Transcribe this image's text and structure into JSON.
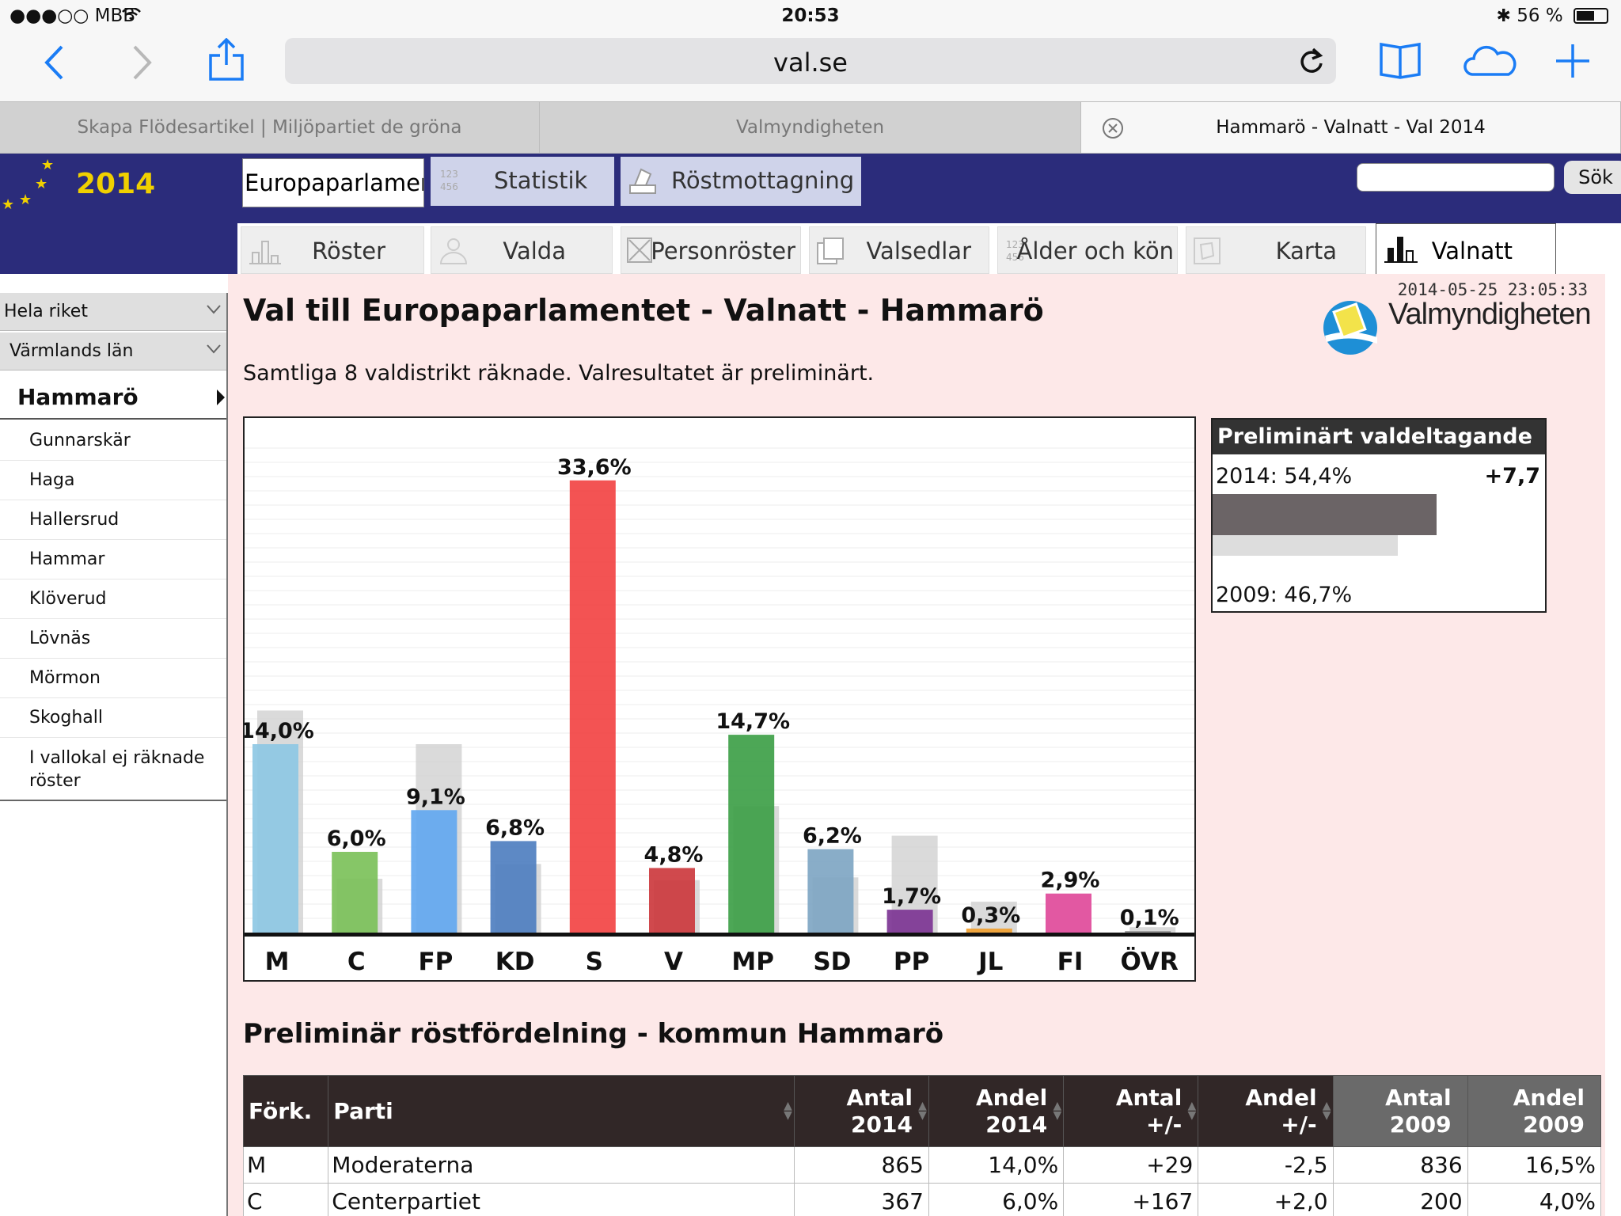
{
  "status": {
    "carrier": "●●●○○ MBB",
    "time": "20:53",
    "battery": "56 %"
  },
  "browser": {
    "url": "val.se",
    "tabs": [
      {
        "label": "Skapa Flödesartikel | Miljöpartiet de gröna"
      },
      {
        "label": "Valmyndigheten"
      },
      {
        "label": "Hammarö - Valnatt - Val 2014"
      }
    ]
  },
  "site": {
    "year": "2014",
    "main_tabs": [
      {
        "label": "Europaparlament"
      },
      {
        "label": "Statistik"
      },
      {
        "label": "Röstmottagning"
      }
    ],
    "search_button": "Sök",
    "sub_tabs": [
      {
        "label": "Röster"
      },
      {
        "label": "Valda"
      },
      {
        "label": "Personröster"
      },
      {
        "label": "Valsedlar"
      },
      {
        "label": "Ålder och kön"
      },
      {
        "label": "Karta"
      },
      {
        "label": "Valnatt"
      }
    ]
  },
  "sidebar": {
    "level1": "Hela riket",
    "level2": "Värmlands län",
    "selected": "Hammarö",
    "items": [
      "Gunnarskär",
      "Haga",
      "Hallersrud",
      "Hammar",
      "Klöverud",
      "Lövnäs",
      "Mörmon",
      "Skoghall"
    ],
    "last_item": "I vallokal ej räknade röster"
  },
  "main": {
    "timestamp": "2014-05-25 23:05:33",
    "logo_text": "Valmyndigheten",
    "title": "Val till Europaparlamentet - Valnatt - Hammarö",
    "subtitle": "Samtliga 8 valdistrikt räknade. Valresultatet är preliminärt.",
    "section_title": "Preliminär röstfördelning - kommun Hammarö"
  },
  "turnout": {
    "title": "Preliminärt valdeltagande",
    "label_2014": "2014: 54,4%",
    "label_2009": "2009: 46,7%",
    "diff": "+7,7",
    "value_2014": 54.4,
    "value_2009": 46.7
  },
  "chart_data": {
    "type": "bar",
    "categories": [
      "M",
      "C",
      "FP",
      "KD",
      "S",
      "V",
      "MP",
      "SD",
      "PP",
      "JL",
      "FI",
      "ÖVR"
    ],
    "series": [
      {
        "values": [
          14.0,
          6.0,
          9.1,
          6.8,
          33.6,
          4.8,
          14.7,
          6.2,
          1.7,
          0.3,
          2.9,
          0.1
        ]
      },
      {
        "values": [
          16.5,
          4.0,
          14.0,
          5.1,
          0,
          3.9,
          9.4,
          4.1,
          7.2,
          2.3,
          0,
          0.4
        ]
      }
    ],
    "labels": [
      "14,0%",
      "6,0%",
      "9,1%",
      "6,8%",
      "33,6%",
      "4,8%",
      "14,7%",
      "6,2%",
      "1,7%",
      "0,3%",
      "2,9%",
      "0,1%"
    ],
    "colors": [
      "#8ec8e4",
      "#7cc15a",
      "#63a8f0",
      "#4f7fc0",
      "#f24444",
      "#cc3a3e",
      "#3ea048",
      "#7fa6c3",
      "#7d3594",
      "#f0a030",
      "#e04a9a",
      "#999999"
    ],
    "ylim": [
      0,
      35
    ]
  },
  "table": {
    "headers": [
      {
        "label": "Förk."
      },
      {
        "label": "Parti"
      },
      {
        "line1": "Antal",
        "line2": "2014"
      },
      {
        "line1": "Andel",
        "line2": "2014"
      },
      {
        "line1": "Antal",
        "line2": "+/-"
      },
      {
        "line1": "Andel",
        "line2": "+/-"
      },
      {
        "line1": "Antal",
        "line2": "2009"
      },
      {
        "line1": "Andel",
        "line2": "2009"
      }
    ],
    "rows": [
      [
        "M",
        "Moderaterna",
        "865",
        "14,0%",
        "+29",
        "-2,5",
        "836",
        "16,5%"
      ],
      [
        "C",
        "Centerpartiet",
        "367",
        "6,0%",
        "+167",
        "+2,0",
        "200",
        "4,0%"
      ]
    ]
  }
}
